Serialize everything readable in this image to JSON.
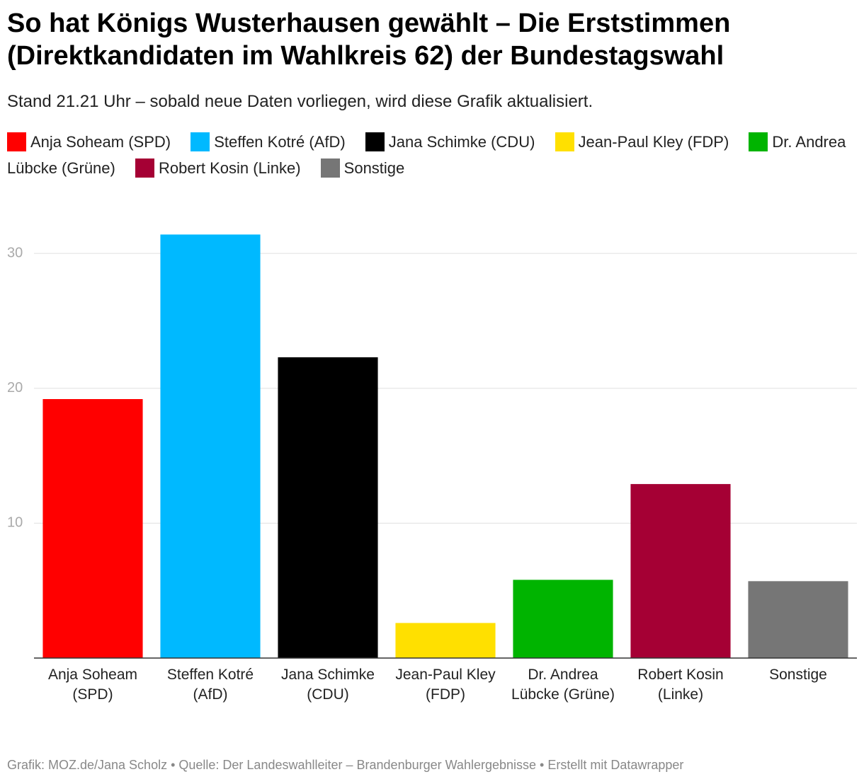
{
  "chart_data": {
    "type": "bar",
    "title": "So hat Königs Wusterhausen gewählt – Die Erststimmen (Direktkandidaten im Wahlkreis 62) der Bundestagswahl",
    "subtitle": "Stand 21.21 Uhr – sobald neue Daten vorliegen, wird diese Grafik aktualisiert.",
    "categories": [
      "Anja Soheam (SPD)",
      "Steffen Kotré (AfD)",
      "Jana Schimke (CDU)",
      "Jean-Paul Kley (FDP)",
      "Dr. Andrea Lübcke (Grüne)",
      "Robert Kosin (Linke)",
      "Sonstige"
    ],
    "values": [
      19.2,
      31.4,
      22.3,
      2.6,
      5.8,
      12.9,
      5.7
    ],
    "colors": [
      "#ff0000",
      "#00b9ff",
      "#000000",
      "#ffe000",
      "#00b400",
      "#a50034",
      "#767676"
    ],
    "ylim": [
      0,
      32
    ],
    "yticks": [
      10,
      20,
      30
    ],
    "grid": true,
    "footer": "Grafik: MOZ.de/Jana Scholz • Quelle: Der Landeswahlleiter – Brandenburger Wahlergebnisse • Erstellt mit Datawrapper"
  }
}
